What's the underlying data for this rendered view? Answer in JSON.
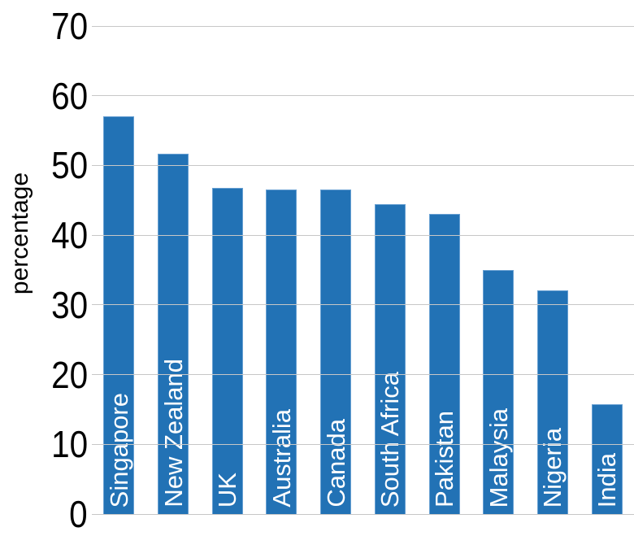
{
  "chart_data": {
    "type": "bar",
    "title": "",
    "xlabel": "",
    "ylabel": "percentage",
    "ylim": [
      0,
      70
    ],
    "yticks": [
      0,
      10,
      20,
      30,
      40,
      50,
      60,
      70
    ],
    "grid": true,
    "legend": false,
    "categories": [
      "Singapore",
      "New Zealand",
      "UK",
      "Australia",
      "Canada",
      "South Africa",
      "Pakistan",
      "Malaysia",
      "Nigeria",
      "India"
    ],
    "values": [
      57.0,
      51.7,
      46.8,
      46.6,
      46.6,
      44.5,
      43.0,
      35.0,
      32.1,
      15.8
    ],
    "bar_color": "#2272b5",
    "bar_border_color": "#68a0d2",
    "bar_label_color": "#ffffff",
    "gridline_color": "#c7c7c7",
    "axis_text_color": "#000000"
  }
}
